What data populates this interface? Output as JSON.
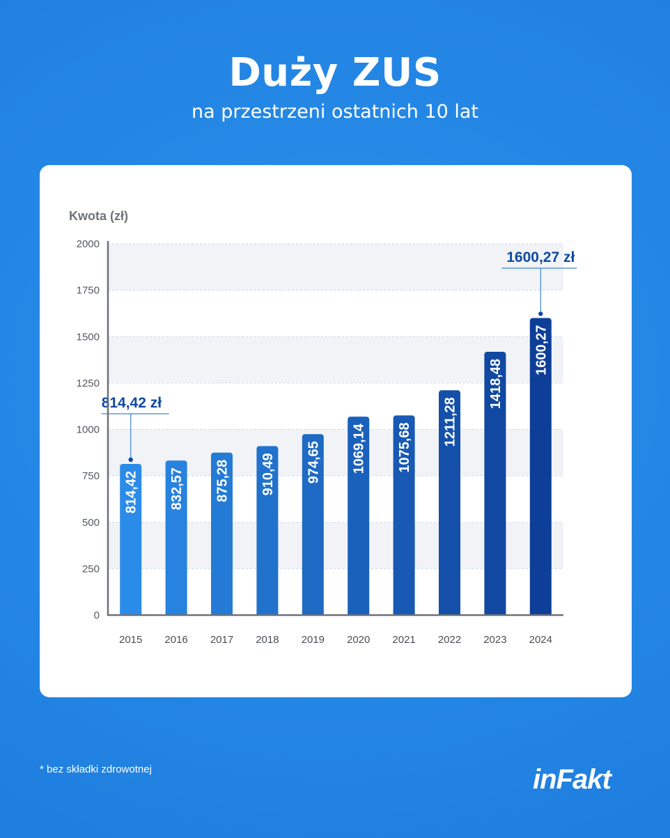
{
  "header": {
    "title": "Duży ZUS",
    "subtitle": "na przestrzeni ostatnich 10 lat"
  },
  "footer": {
    "footnote": "* bez składki zdrowotnej",
    "logo": "inFakt"
  },
  "colors": {
    "bar_light": "#2a8ce8",
    "bar_dark": "#0e3f98",
    "callout": "#0f4aa3",
    "band": "#f1f3f6"
  },
  "chart_data": {
    "type": "bar",
    "title": "Duży ZUS",
    "subtitle": "na przestrzeni ostatnich 10 lat",
    "ylabel": "Kwota (zł)",
    "xlabel": "",
    "categories": [
      "2015",
      "2016",
      "2017",
      "2018",
      "2019",
      "2020",
      "2021",
      "2022",
      "2023",
      "2024"
    ],
    "values": [
      814.42,
      832.57,
      875.28,
      910.49,
      974.65,
      1069.14,
      1075.68,
      1211.28,
      1418.48,
      1600.27
    ],
    "value_labels": [
      "814,42",
      "832,57",
      "875,28",
      "910,49",
      "974,65",
      "1069,14",
      "1075,68",
      "1211,28",
      "1418,48",
      "1600,27"
    ],
    "ylim": [
      0,
      2000
    ],
    "yticks": [
      "0",
      "250",
      "500",
      "750",
      "1000",
      "1250",
      "1500",
      "1750",
      "2000"
    ],
    "yticks_values": [
      0,
      250,
      500,
      750,
      1000,
      1250,
      1500,
      1750,
      2000
    ],
    "annotations": [
      {
        "category": "2015",
        "value": 814.42,
        "text": "814,42 zł"
      },
      {
        "category": "2024",
        "value": 1600.27,
        "text": "1600,27 zł"
      }
    ]
  }
}
